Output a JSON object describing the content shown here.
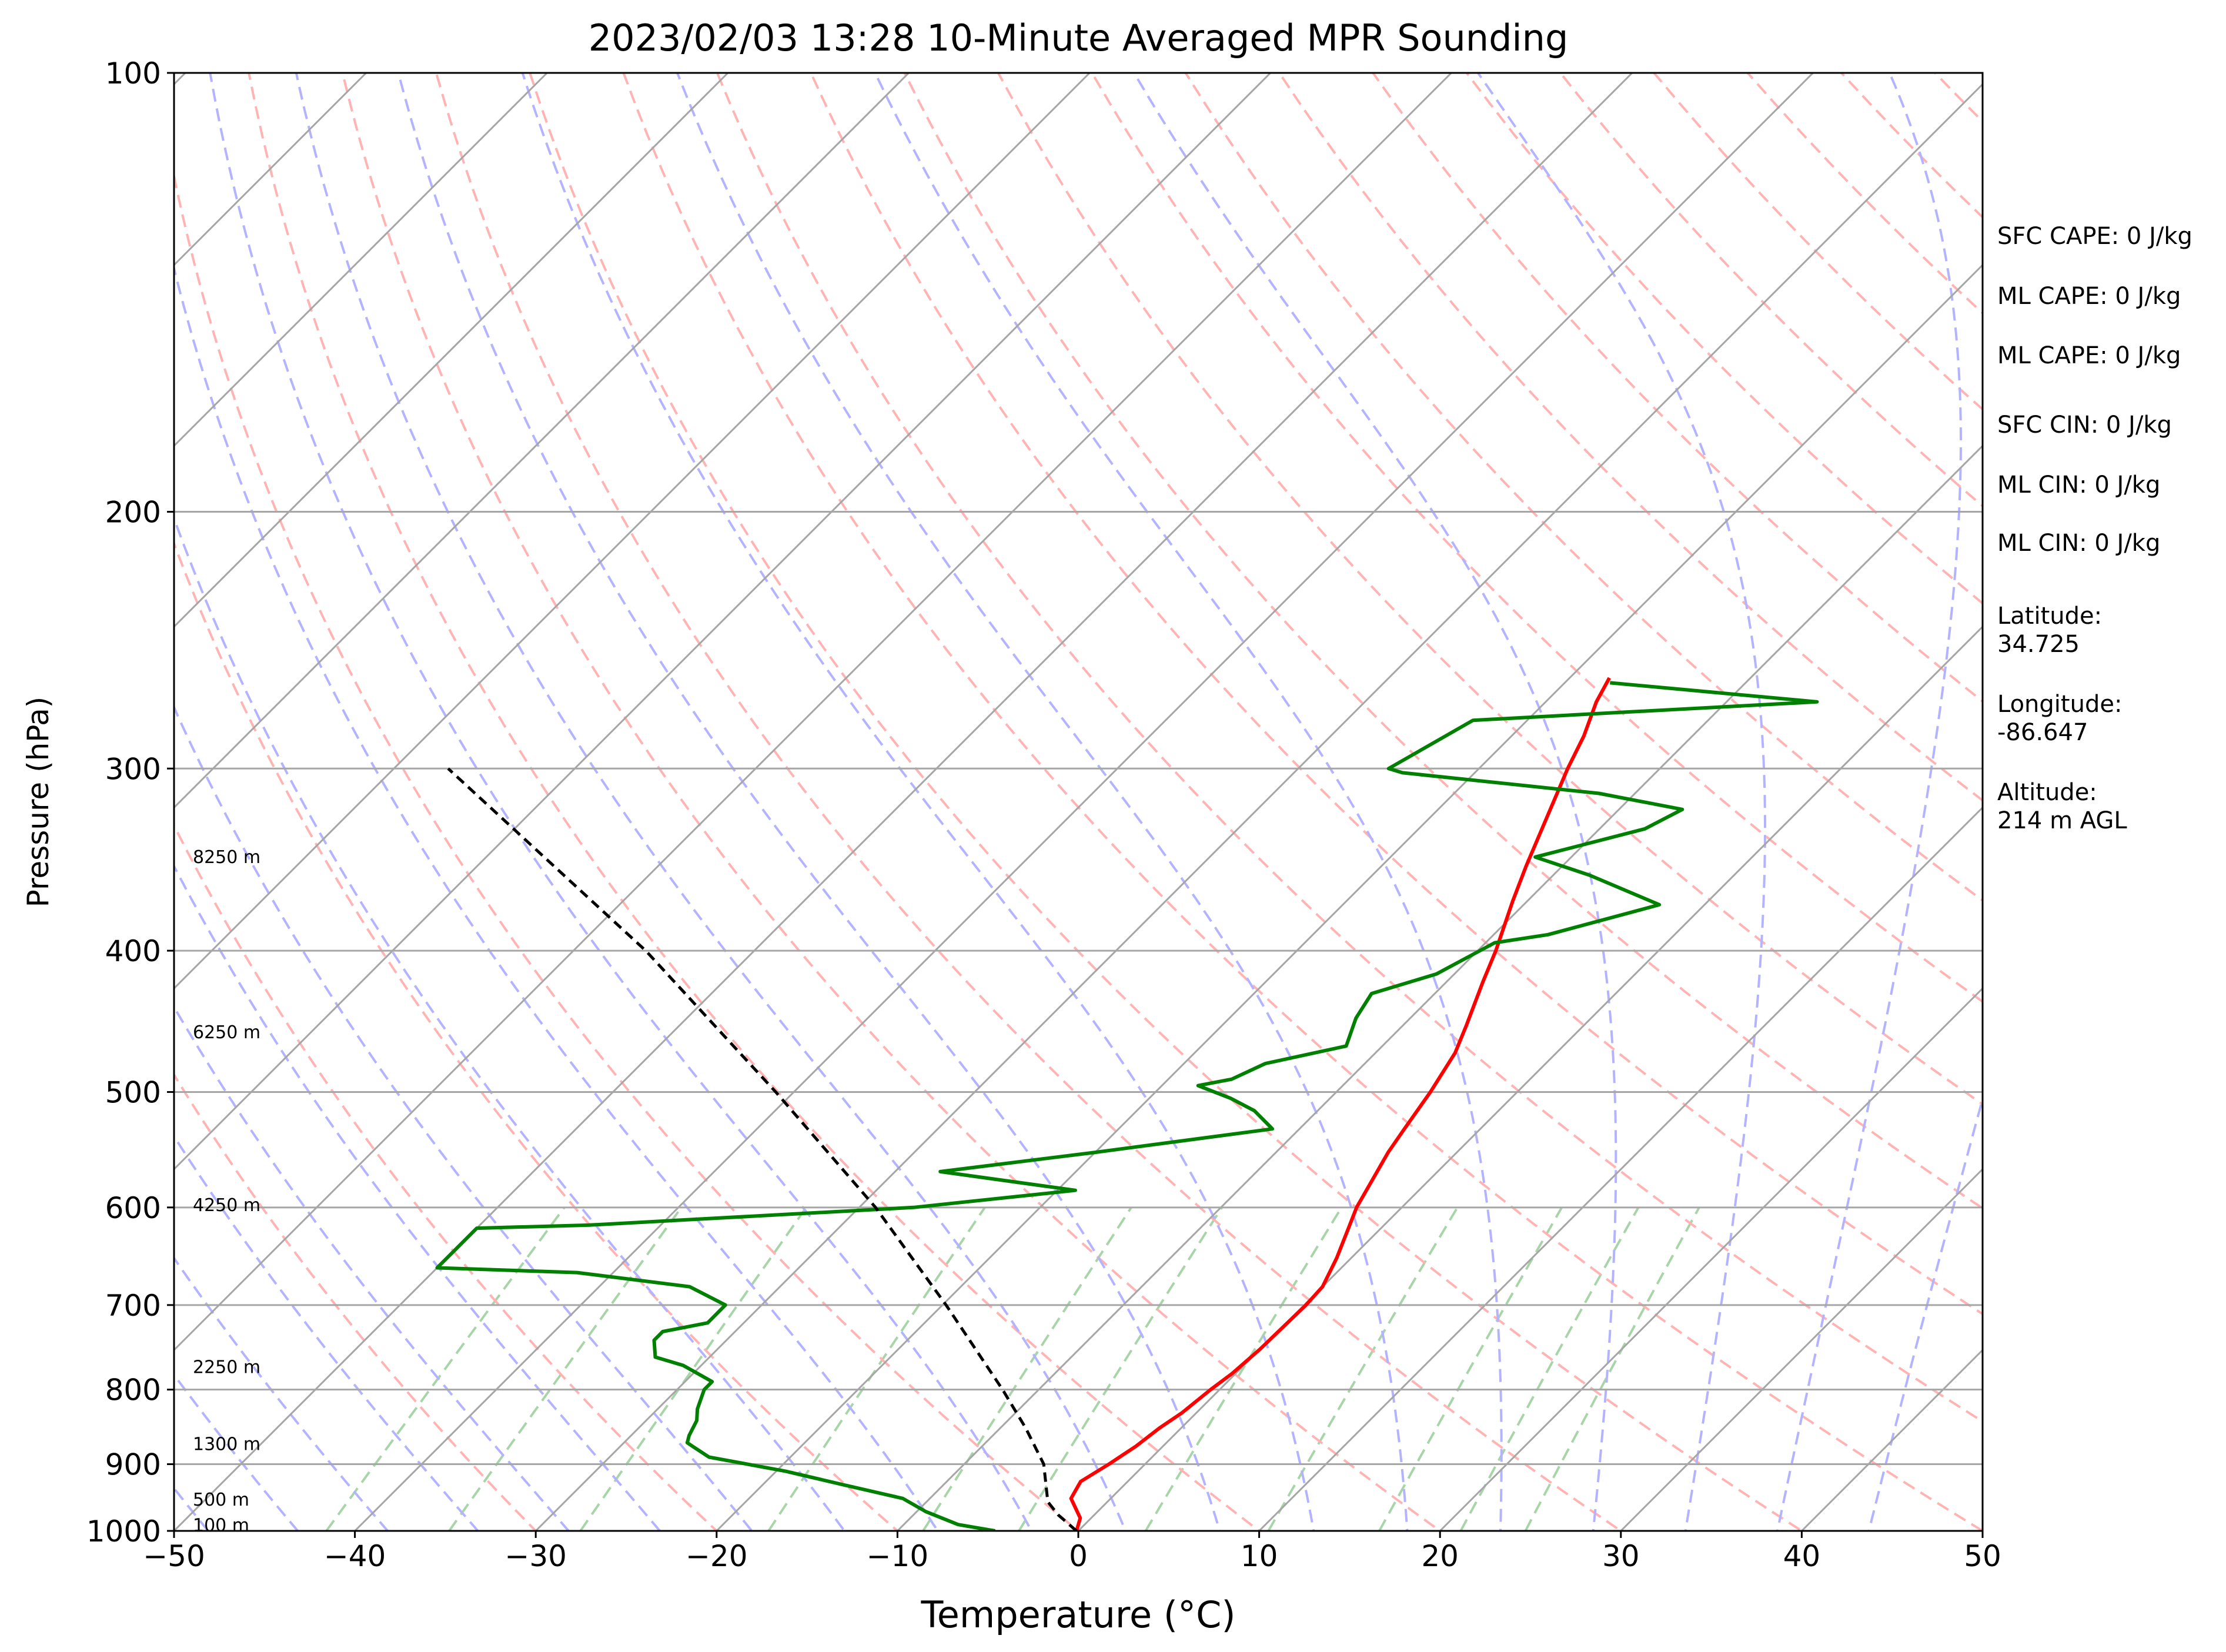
{
  "chart_data": {
    "type": "line",
    "title": "2023/02/03 13:28 10-Minute Averaged MPR Sounding",
    "xlabel": "Temperature (°C)",
    "ylabel": "Pressure (hPa)",
    "xlim": [
      -50,
      50
    ],
    "ylim": [
      1000,
      100
    ],
    "y_scale": "log",
    "x_ticks": [
      "−50",
      "−40",
      "−30",
      "−20",
      "−10",
      "0",
      "10",
      "20",
      "30",
      "40",
      "50"
    ],
    "y_ticks": [
      "100",
      "200",
      "300",
      "400",
      "500",
      "600",
      "700",
      "800",
      "900",
      "1000"
    ],
    "grid": true,
    "skew": 1.0,
    "height_labels": [
      {
        "text": "8250 m",
        "p": 345
      },
      {
        "text": "6250 m",
        "p": 455
      },
      {
        "text": "4250 m",
        "p": 598
      },
      {
        "text": "2250 m",
        "p": 772
      },
      {
        "text": "1300 m",
        "p": 872
      },
      {
        "text": "500 m",
        "p": 952
      },
      {
        "text": "100 m",
        "p": 991
      }
    ],
    "series": [
      {
        "key": "temperature",
        "color": "#ff0000",
        "points": [
          [
            1000,
            -0.1
          ],
          [
            980,
            -0.6
          ],
          [
            950,
            -2.2
          ],
          [
            925,
            -2.6
          ],
          [
            900,
            -2.0
          ],
          [
            875,
            -1.5
          ],
          [
            850,
            -1.2
          ],
          [
            830,
            -0.8
          ],
          [
            800,
            -0.5
          ],
          [
            780,
            -0.2
          ],
          [
            750,
            0.0
          ],
          [
            700,
            0.1
          ],
          [
            680,
            0.0
          ],
          [
            650,
            -0.8
          ],
          [
            620,
            -1.8
          ],
          [
            600,
            -2.5
          ],
          [
            550,
            -3.8
          ],
          [
            530,
            -4.2
          ],
          [
            500,
            -4.8
          ],
          [
            470,
            -5.6
          ],
          [
            450,
            -6.5
          ],
          [
            420,
            -8.0
          ],
          [
            400,
            -9.0
          ],
          [
            370,
            -10.8
          ],
          [
            350,
            -12.0
          ],
          [
            320,
            -13.8
          ],
          [
            300,
            -15.1
          ],
          [
            285,
            -16.0
          ],
          [
            270,
            -17.2
          ],
          [
            260,
            -17.8
          ]
        ]
      },
      {
        "key": "dewpoint",
        "color": "#008000",
        "points": [
          [
            1000,
            -4.6
          ],
          [
            990,
            -7.0
          ],
          [
            970,
            -9.5
          ],
          [
            950,
            -11.5
          ],
          [
            930,
            -15.5
          ],
          [
            910,
            -19.5
          ],
          [
            890,
            -24.5
          ],
          [
            875,
            -26.0
          ],
          [
            870,
            -26.5
          ],
          [
            860,
            -26.8
          ],
          [
            840,
            -27.2
          ],
          [
            825,
            -27.8
          ],
          [
            800,
            -28.5
          ],
          [
            790,
            -28.5
          ],
          [
            770,
            -31.0
          ],
          [
            760,
            -33.0
          ],
          [
            740,
            -34.0
          ],
          [
            730,
            -34.0
          ],
          [
            720,
            -32.0
          ],
          [
            700,
            -32.0
          ],
          [
            680,
            -35.0
          ],
          [
            665,
            -42.0
          ],
          [
            660,
            -50.0
          ],
          [
            620,
            -50.0
          ],
          [
            617,
            -44.0
          ],
          [
            600,
            -27.0
          ],
          [
            584,
            -19.0
          ],
          [
            567,
            -27.5
          ],
          [
            550,
            -20.0
          ],
          [
            530,
            -11.5
          ],
          [
            515,
            -13.5
          ],
          [
            505,
            -15.5
          ],
          [
            495,
            -18.0
          ],
          [
            490,
            -16.5
          ],
          [
            478,
            -15.5
          ],
          [
            465,
            -12.0
          ],
          [
            445,
            -13.0
          ],
          [
            428,
            -13.5
          ],
          [
            415,
            -11.0
          ],
          [
            395,
            -9.5
          ],
          [
            390,
            -7.0
          ],
          [
            372,
            -2.5
          ],
          [
            355,
            -8.0
          ],
          [
            345,
            -12.0
          ],
          [
            330,
            -7.5
          ],
          [
            320,
            -6.5
          ],
          [
            312,
            -12.0
          ],
          [
            302,
            -24.0
          ],
          [
            300,
            -25.0
          ],
          [
            278,
            -23.0
          ],
          [
            270,
            -5.0
          ],
          [
            262,
            -17.5
          ]
        ]
      },
      {
        "key": "parcel",
        "color": "#000000",
        "dashed": true,
        "points": [
          [
            1000,
            -0.1
          ],
          [
            975,
            -2.0
          ],
          [
            955,
            -3.3
          ],
          [
            900,
            -5.6
          ],
          [
            850,
            -8.6
          ],
          [
            800,
            -12.0
          ],
          [
            700,
            -19.8
          ],
          [
            600,
            -29.1
          ],
          [
            500,
            -41.0
          ],
          [
            400,
            -56.0
          ],
          [
            300,
            -77.0
          ]
        ]
      }
    ]
  },
  "annotations": [
    "SFC CAPE: 0 J/kg",
    "ML CAPE: 0 J/kg",
    "ML CAPE: 0 J/kg",
    "SFC CIN: 0 J/kg",
    "ML CIN: 0 J/kg",
    "ML CIN: 0 J/kg",
    "Latitude:",
    "34.725",
    "Longitude:",
    "-86.647",
    "Altitude:",
    "214 m AGL"
  ],
  "colors": {
    "temperature": "#ff0000",
    "dewpoint": "#008000",
    "parcel": "#000000",
    "isotherms": "#a6a6a6",
    "dry_adiabats": "#ffb3b3",
    "moist_adiabats": "#b3b3ff",
    "mixing_ratio": "#a8d5a8"
  }
}
